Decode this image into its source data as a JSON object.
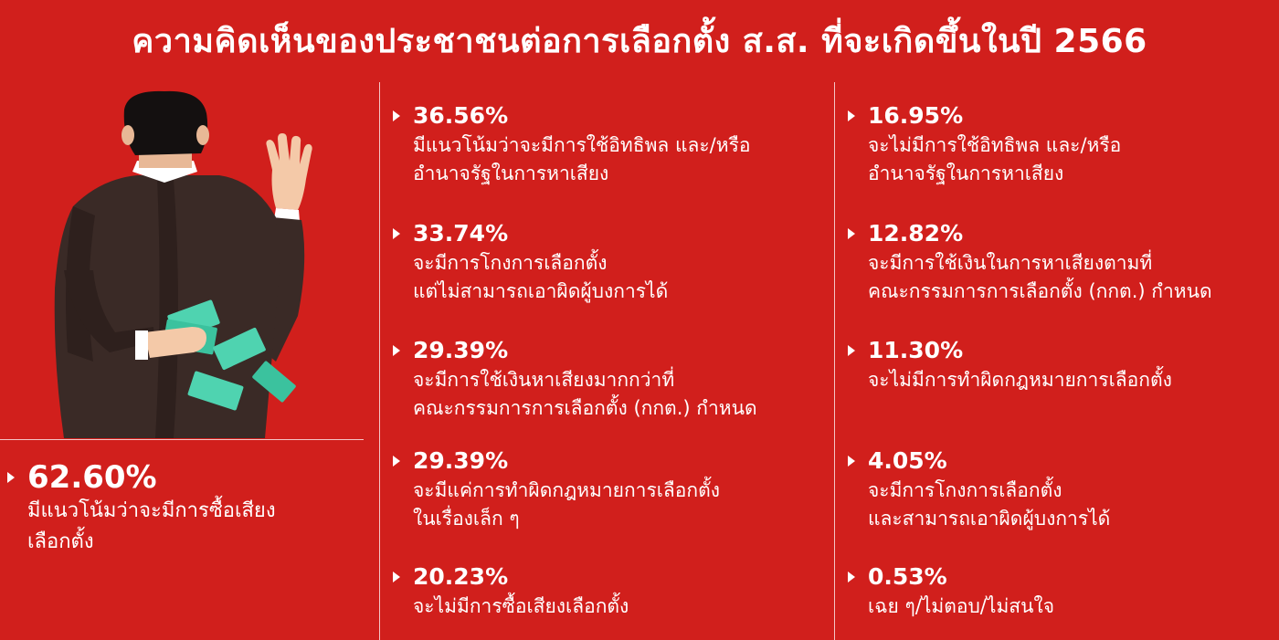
{
  "title": "ความคิดเห็นของประชาชนต่อการเลือกตั้ง ส.ส. ที่จะเกิดขึ้นในปี 2566",
  "colors": {
    "background": "#d11f1c",
    "text": "#ffffff",
    "money": "#4fd3b0"
  },
  "highlight": {
    "percent": "62.60%",
    "lines": [
      "มีแนวโน้มว่าจะมีการซื้อเสียง",
      "เลือกตั้ง"
    ]
  },
  "column_left": [
    {
      "percent": "36.56%",
      "lines": [
        "มีแนวโน้มว่าจะมีการใช้อิทธิพล และ/หรือ",
        "อำนาจรัฐในการหาเสียง"
      ]
    },
    {
      "percent": "33.74%",
      "lines": [
        "จะมีการโกงการเลือกตั้ง",
        "แต่ไม่สามารถเอาผิดผู้บงการได้"
      ]
    },
    {
      "percent": "29.39%",
      "lines": [
        "จะมีการใช้เงินหาเสียงมากกว่าที่",
        "คณะกรรมการการเลือกตั้ง (กกต.) กำหนด"
      ]
    },
    {
      "percent": "29.39%",
      "lines": [
        "จะมีแค่การทำผิดกฎหมายการเลือกตั้ง",
        "ในเรื่องเล็ก ๆ"
      ]
    },
    {
      "percent": "20.23%",
      "lines": [
        "จะไม่มีการซื้อเสียงเลือกตั้ง"
      ]
    }
  ],
  "column_right": [
    {
      "percent": "16.95%",
      "lines": [
        "จะไม่มีการใช้อิทธิพล และ/หรือ",
        "อำนาจรัฐในการหาเสียง"
      ]
    },
    {
      "percent": "12.82%",
      "lines": [
        "จะมีการใช้เงินในการหาเสียงตามที่",
        "คณะกรรมการการเลือกตั้ง (กกต.) กำหนด"
      ]
    },
    {
      "percent": "11.30%",
      "lines": [
        "จะไม่มีการทำผิดกฎหมายการเลือกตั้ง"
      ]
    },
    {
      "percent": "4.05%",
      "lines": [
        "จะมีการโกงการเลือกตั้ง",
        "และสามารถเอาผิดผู้บงการได้"
      ]
    },
    {
      "percent": "0.53%",
      "lines": [
        "เฉย ๆ/ไม่ตอบ/ไม่สนใจ"
      ]
    }
  ]
}
